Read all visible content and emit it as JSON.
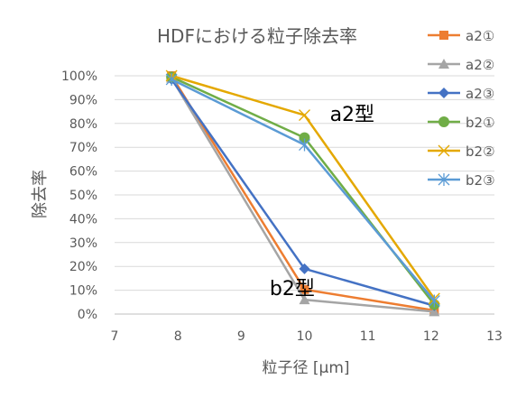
{
  "chart_data": {
    "type": "scatter",
    "title": "HDFにおける粒子除去率",
    "xlabel": "粒子径 [μm]",
    "ylabel": "除去率",
    "xlim": [
      7,
      13
    ],
    "ylim": [
      0,
      100
    ],
    "x_ticks": [
      "7",
      "8",
      "9",
      "10",
      "11",
      "12",
      "13"
    ],
    "y_ticks": [
      "0%",
      "10%",
      "20%",
      "30%",
      "40%",
      "50%",
      "60%",
      "70%",
      "80%",
      "90%",
      "100%"
    ],
    "grid": "horizontal",
    "legend_position": "right",
    "series": [
      {
        "name": "a2①",
        "color": "#ED7D31",
        "marker": "square",
        "x": [
          7.9,
          10.0,
          12.05
        ],
        "y": [
          100,
          10.3,
          1.5
        ]
      },
      {
        "name": "a2②",
        "color": "#A5A5A5",
        "marker": "triangle",
        "x": [
          7.9,
          10.0,
          12.05
        ],
        "y": [
          99,
          6.0,
          1.0
        ]
      },
      {
        "name": "a2③",
        "color": "#4472C4",
        "marker": "diamond",
        "x": [
          7.9,
          10.0,
          12.05
        ],
        "y": [
          98.5,
          19.0,
          3.5
        ]
      },
      {
        "name": "b2①",
        "color": "#70AD47",
        "marker": "circle",
        "x": [
          7.9,
          10.0,
          12.05
        ],
        "y": [
          99.5,
          74.0,
          4.0
        ]
      },
      {
        "name": "b2②",
        "color": "#E4A800",
        "marker": "x",
        "x": [
          7.9,
          10.0,
          12.05
        ],
        "y": [
          100,
          83.5,
          6.5
        ]
      },
      {
        "name": "b2③",
        "color": "#5B9BD5",
        "marker": "asterisk",
        "x": [
          7.9,
          10.0,
          12.05
        ],
        "y": [
          98.5,
          71.0,
          5.5
        ]
      }
    ],
    "annotations": [
      {
        "text": "a2型",
        "x": 10.4,
        "y": 81
      },
      {
        "text": "b2型",
        "x": 9.45,
        "y": 8
      }
    ]
  }
}
